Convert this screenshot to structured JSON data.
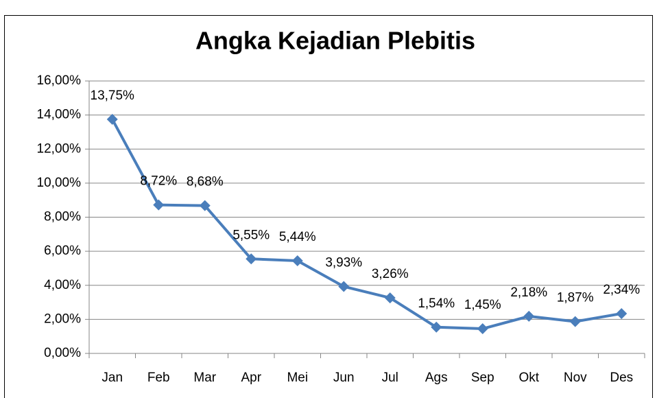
{
  "chart_data": {
    "type": "line",
    "title": "Angka Kejadian Plebitis",
    "categories": [
      "Jan",
      "Feb",
      "Mar",
      "Apr",
      "Mei",
      "Jun",
      "Jul",
      "Ags",
      "Sep",
      "Okt",
      "Nov",
      "Des"
    ],
    "series": [
      {
        "name": "Angka Kejadian Plebitis",
        "color": "#4a7ebb",
        "values": [
          13.75,
          8.72,
          8.68,
          5.55,
          5.44,
          3.93,
          3.26,
          1.54,
          1.45,
          2.18,
          1.87,
          2.34
        ],
        "value_labels": [
          "13,75%",
          "8,72%",
          "8,68%",
          "5,55%",
          "5,44%",
          "3,93%",
          "3,26%",
          "1,54%",
          "1,45%",
          "2,18%",
          "1,87%",
          "2,34%"
        ]
      }
    ],
    "ylim": [
      0,
      16
    ],
    "yticks": [
      {
        "value": 0,
        "label": "0,00%"
      },
      {
        "value": 2,
        "label": "2,00%"
      },
      {
        "value": 4,
        "label": "4,00%"
      },
      {
        "value": 6,
        "label": "6,00%"
      },
      {
        "value": 8,
        "label": "8,00%"
      },
      {
        "value": 10,
        "label": "10,00%"
      },
      {
        "value": 12,
        "label": "12,00%"
      },
      {
        "value": 14,
        "label": "14,00%"
      },
      {
        "value": 16,
        "label": "16,00%"
      }
    ],
    "grid": true
  }
}
